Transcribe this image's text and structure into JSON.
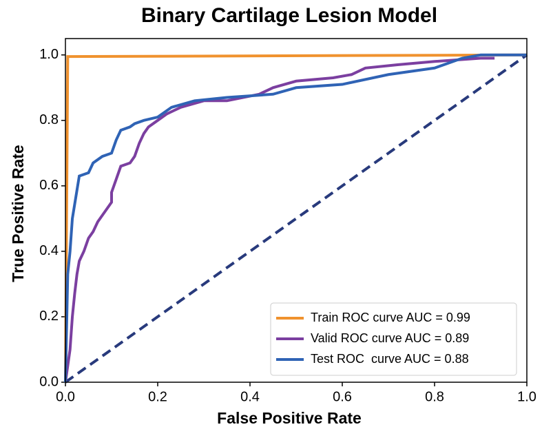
{
  "chart_data": {
    "type": "line",
    "title": "Binary Cartilage Lesion Model",
    "xlabel": "False Positive Rate",
    "ylabel": "True Positive Rate",
    "xlim": [
      0,
      1
    ],
    "ylim": [
      0,
      1.05
    ],
    "xticks": [
      {
        "value": 0,
        "label": "0.0"
      },
      0.2,
      0.4,
      0.6,
      0.8,
      {
        "value": 1,
        "label": "1.0"
      }
    ],
    "yticks": [
      {
        "value": 0,
        "label": "0.0"
      },
      0.2,
      0.4,
      0.6,
      0.8,
      {
        "value": 1,
        "label": "1.0"
      }
    ],
    "legend": "lower right",
    "series": [
      {
        "name": "Train ROC curve AUC = 0.99",
        "color": "#f0922e",
        "x": [
          0,
          0.005,
          1
        ],
        "values": [
          0,
          0.995,
          1
        ]
      },
      {
        "name": "Valid ROC curve AUC = 0.89",
        "color": "#7b3fa0",
        "x": [
          0,
          0.01,
          0.015,
          0.02,
          0.025,
          0.03,
          0.04,
          0.05,
          0.06,
          0.07,
          0.08,
          0.09,
          0.1,
          0.1,
          0.11,
          0.12,
          0.14,
          0.15,
          0.16,
          0.17,
          0.18,
          0.2,
          0.22,
          0.25,
          0.3,
          0.35,
          0.42,
          0.45,
          0.5,
          0.58,
          0.62,
          0.65,
          0.72,
          0.8,
          0.9,
          0.93
        ],
        "values": [
          0,
          0.1,
          0.2,
          0.27,
          0.33,
          0.37,
          0.4,
          0.44,
          0.46,
          0.49,
          0.51,
          0.53,
          0.55,
          0.58,
          0.62,
          0.66,
          0.67,
          0.69,
          0.73,
          0.76,
          0.78,
          0.8,
          0.82,
          0.84,
          0.86,
          0.86,
          0.88,
          0.9,
          0.92,
          0.93,
          0.94,
          0.96,
          0.97,
          0.98,
          0.99,
          0.99
        ]
      },
      {
        "name": "Test ROC  curve AUC = 0.88",
        "color": "#2f63b5",
        "x": [
          0,
          0.005,
          0.01,
          0.015,
          0.03,
          0.05,
          0.06,
          0.08,
          0.1,
          0.11,
          0.12,
          0.14,
          0.15,
          0.17,
          0.2,
          0.23,
          0.28,
          0.35,
          0.45,
          0.5,
          0.6,
          0.7,
          0.8,
          0.86,
          0.9,
          1
        ],
        "values": [
          0,
          0.33,
          0.4,
          0.5,
          0.63,
          0.64,
          0.67,
          0.69,
          0.7,
          0.74,
          0.77,
          0.78,
          0.79,
          0.8,
          0.81,
          0.84,
          0.86,
          0.87,
          0.88,
          0.9,
          0.91,
          0.94,
          0.96,
          0.99,
          1,
          1
        ]
      }
    ],
    "reference_line": {
      "color": "#283a7c",
      "x": [
        0,
        1
      ],
      "values": [
        0,
        1
      ]
    }
  }
}
